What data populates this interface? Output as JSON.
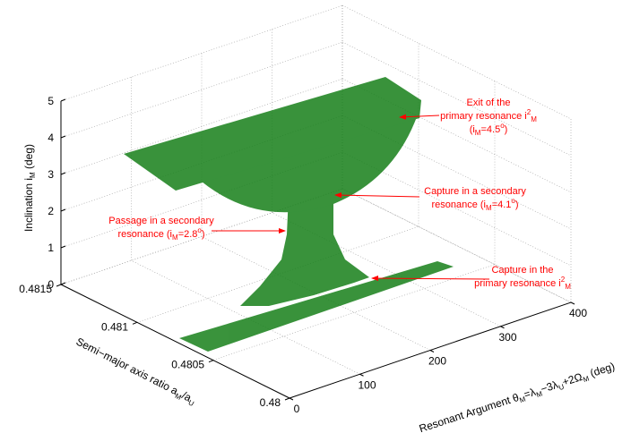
{
  "chart_data": {
    "type": "scatter3d",
    "x_label": [
      "Resonant Argument θ",
      {
        "text": "M",
        "shift": "sub"
      },
      "=λ",
      {
        "text": "M",
        "shift": "sub"
      },
      "−3λ",
      {
        "text": "U",
        "shift": "sub"
      },
      "+2Ω",
      {
        "text": "M",
        "shift": "sub"
      },
      " (deg)"
    ],
    "y_label": [
      "Semi−major axis ratio a",
      {
        "text": "M",
        "shift": "sub"
      },
      "/a",
      {
        "text": "U",
        "shift": "sub"
      }
    ],
    "z_label": [
      "Inclination i",
      {
        "text": "M",
        "shift": "sub"
      },
      " (deg)"
    ],
    "xlim": [
      0,
      400
    ],
    "xticks": [
      0,
      100,
      200,
      300,
      400
    ],
    "ylim": [
      0.48,
      0.4815
    ],
    "yticks": [
      0.48,
      0.4805,
      0.481,
      0.4815
    ],
    "zlim": [
      0,
      5
    ],
    "zticks": [
      0,
      1,
      2,
      3,
      4,
      5
    ],
    "grid": true,
    "color": "#17801a",
    "annotation_color": "#ff0000",
    "annotations": [
      {
        "lines": [
          [
            "Exit of the"
          ],
          [
            "primary resonance i",
            {
              "text": "2",
              "shift": "sup"
            },
            {
              "text": "M",
              "shift": "sub"
            }
          ],
          [
            "(i",
            {
              "text": "M",
              "shift": "sub"
            },
            "=4.5",
            {
              "text": "o",
              "shift": "sup"
            },
            ")"
          ]
        ]
      },
      {
        "lines": [
          [
            "Capture in a secondary"
          ],
          [
            "resonance (i",
            {
              "text": "M",
              "shift": "sub"
            },
            "=4.1",
            {
              "text": "o",
              "shift": "sup"
            },
            ")"
          ]
        ]
      },
      {
        "lines": [
          [
            "Passage in a secondary"
          ],
          [
            "resonance (i",
            {
              "text": "M",
              "shift": "sub"
            },
            "=2.8",
            {
              "text": "o",
              "shift": "sup"
            },
            ")"
          ]
        ]
      },
      {
        "lines": [
          [
            "Capture in the"
          ],
          [
            "primary resonance i",
            {
              "text": "2",
              "shift": "sup"
            },
            {
              "text": "M",
              "shift": "sub"
            }
          ]
        ]
      }
    ]
  }
}
